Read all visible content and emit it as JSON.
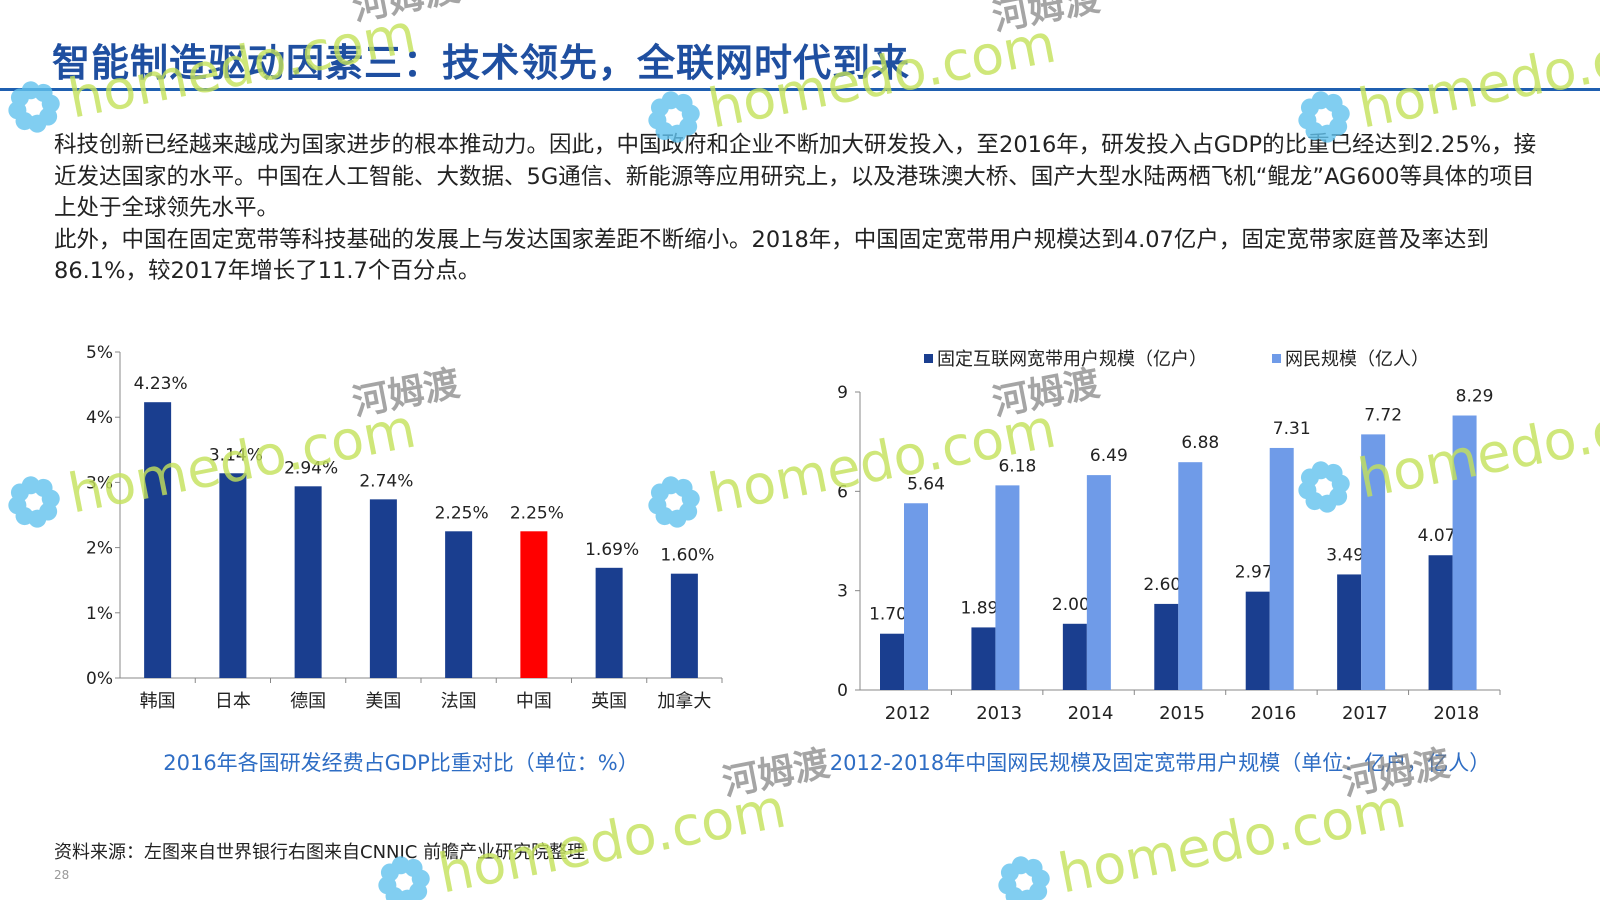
{
  "title": "智能制造驱动因素三：技术领先，全联网时代到来",
  "paragraphs": [
    "科技创新已经越来越成为国家进步的根本推动力。因此，中国政府和企业不断加大研发投入，至2016年，研发投入占GDP的比重已经达到2.25%，接近发达国家的水平。中国在人工智能、大数据、5G通信、新能源等应用研究上，以及港珠澳大桥、国产大型水陆两栖飞机“鲲龙”AG600等具体的项目上处于全球领先水平。",
    "此外，中国在固定宽带等科技基础的发展上与发达国家差距不断缩小。2018年，中国固定宽带用户规模达到4.07亿户，固定宽带家庭普及率达到86.1%，较2017年增长了11.7个百分点。"
  ],
  "source": "资料来源：左图来自世界银行右图来自CNNIC 前瞻产业研究院整理",
  "page_number": "28",
  "watermark": {
    "brand": "homedo.com",
    "cn": "河姆渡"
  },
  "colors": {
    "title": "#1f4fa0",
    "dark_blue": "#1a3e8f",
    "light_blue": "#6f9be8",
    "red": "#ff0000",
    "caption": "#2e6dc4"
  },
  "chart_data": [
    {
      "type": "bar",
      "title": "2016年各国研发经费占GDP比重对比（单位：%）",
      "categories": [
        "韩国",
        "日本",
        "德国",
        "美国",
        "法国",
        "中国",
        "英国",
        "加拿大"
      ],
      "values": [
        4.23,
        3.14,
        2.94,
        2.74,
        2.25,
        2.25,
        1.69,
        1.6
      ],
      "value_labels": [
        "4.23%",
        "3.14%",
        "2.94%",
        "2.74%",
        "2.25%",
        "2.25%",
        "1.69%",
        "1.60%"
      ],
      "highlight": "中国",
      "ylim": [
        0,
        5
      ],
      "yticks": [
        "0%",
        "1%",
        "2%",
        "3%",
        "4%",
        "5%"
      ],
      "grid": false
    },
    {
      "type": "bar",
      "title": "2012-2018年中国网民规模及固定宽带用户规模（单位：亿户，亿人）",
      "categories": [
        "2012",
        "2013",
        "2014",
        "2015",
        "2016",
        "2017",
        "2018"
      ],
      "series": [
        {
          "name": "固定互联网宽带用户规模（亿户）",
          "values": [
            1.7,
            1.89,
            2.0,
            2.6,
            2.97,
            3.49,
            4.07
          ],
          "labels": [
            "1.70",
            "1.89",
            "2.00",
            "2.60",
            "2.97",
            "3.49",
            "4.07"
          ]
        },
        {
          "name": "网民规模（亿人）",
          "values": [
            5.64,
            6.18,
            6.49,
            6.88,
            7.31,
            7.72,
            8.29
          ],
          "labels": [
            "5.64",
            "6.18",
            "6.49",
            "6.88",
            "7.31",
            "7.72",
            "8.29"
          ]
        }
      ],
      "ylim": [
        0,
        9
      ],
      "yticks": [
        "0",
        "3",
        "6",
        "9"
      ],
      "legend": "top",
      "grid": false
    }
  ]
}
